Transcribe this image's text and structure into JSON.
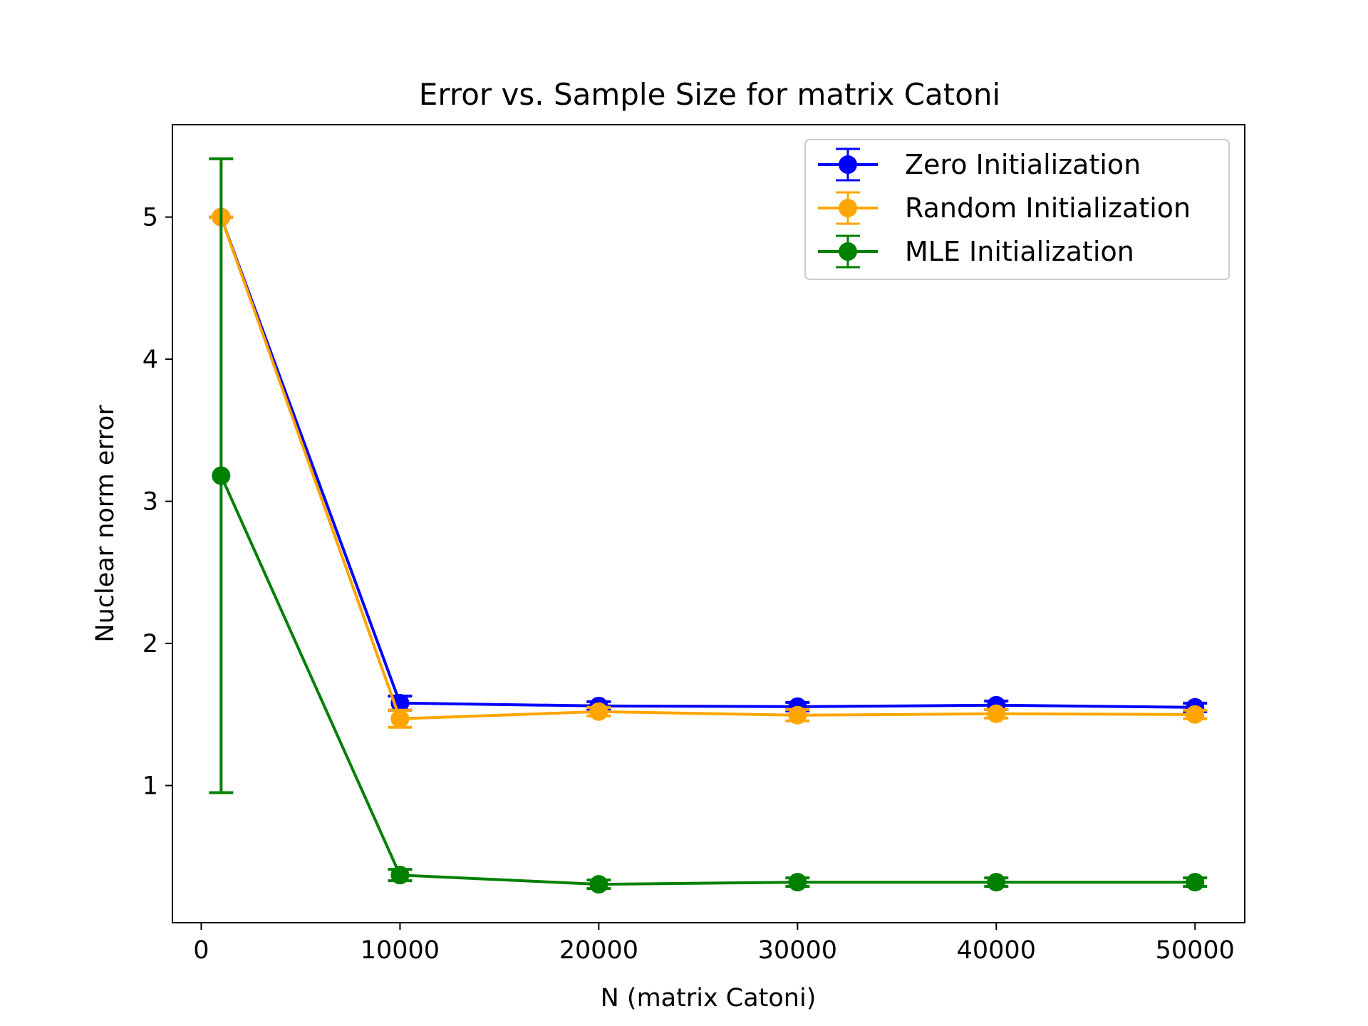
{
  "chart_data": {
    "type": "line",
    "title": "Error vs. Sample Size for matrix Catoni",
    "xlabel": "N (matrix Catoni)",
    "ylabel": "Nuclear norm error",
    "xlim": [
      -1450,
      52500
    ],
    "ylim": [
      0.035,
      5.65
    ],
    "xticks": [
      0,
      10000,
      20000,
      30000,
      40000,
      50000
    ],
    "yticks": [
      1,
      2,
      3,
      4,
      5
    ],
    "grid": false,
    "legend_position": "top-right",
    "error_bars": true,
    "x": [
      1000,
      10000,
      20000,
      30000,
      40000,
      50000
    ],
    "series": [
      {
        "name": "Zero Initialization",
        "color": "#0000ff",
        "values": [
          5.0,
          1.58,
          1.56,
          1.555,
          1.565,
          1.55
        ],
        "errors": [
          0.0,
          0.05,
          0.03,
          0.03,
          0.03,
          0.03
        ]
      },
      {
        "name": "Random Initialization",
        "color": "#ffa500",
        "values": [
          5.0,
          1.47,
          1.52,
          1.495,
          1.505,
          1.5
        ],
        "errors": [
          0.0,
          0.06,
          0.03,
          0.04,
          0.03,
          0.03
        ]
      },
      {
        "name": "MLE Initialization",
        "color": "#008000",
        "values": [
          3.18,
          0.37,
          0.305,
          0.32,
          0.32,
          0.32
        ],
        "errors": [
          2.23,
          0.04,
          0.03,
          0.03,
          0.03,
          0.03
        ]
      }
    ]
  }
}
